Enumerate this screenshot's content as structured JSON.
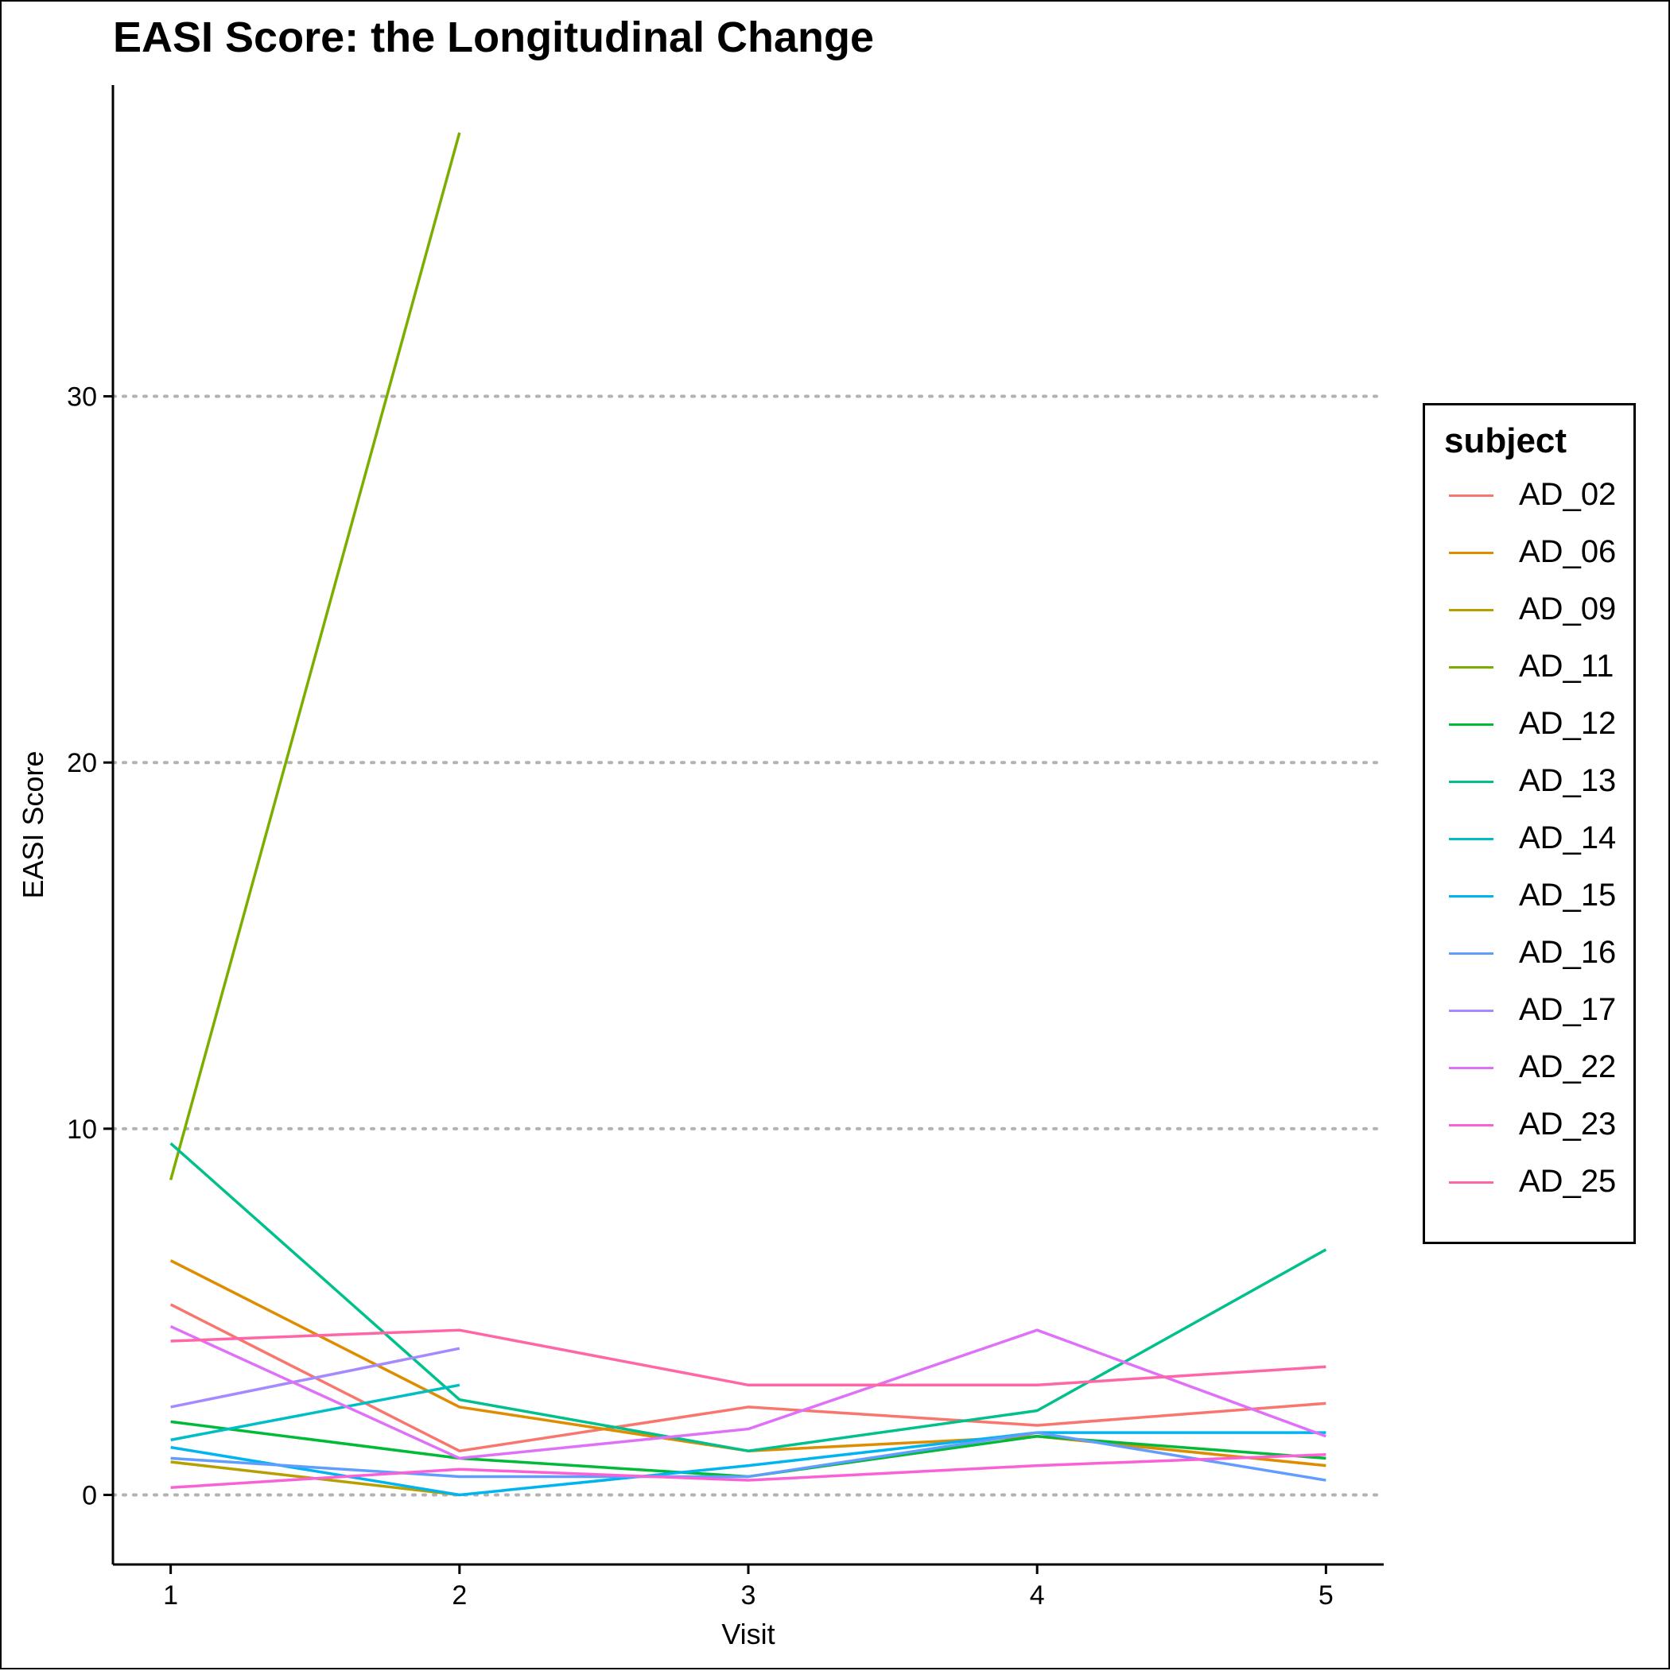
{
  "chart_data": {
    "type": "line",
    "title": "EASI Score: the Longitudinal Change",
    "xlabel": "Visit",
    "ylabel": "EASI Score",
    "x": [
      1,
      2,
      3,
      4,
      5
    ],
    "x_ticks": [
      "1",
      "2",
      "3",
      "4",
      "5"
    ],
    "y_ticks": [
      0,
      10,
      20,
      30
    ],
    "ylim": [
      -1.9,
      38.5
    ],
    "xlim": [
      0.8,
      5.2
    ],
    "grid": "horizontal dotted",
    "legend_title": "subject",
    "legend_position": "right",
    "series": [
      {
        "name": "AD_02",
        "color": "#F8766D",
        "values": [
          5.2,
          1.2,
          2.4,
          1.9,
          2.5
        ]
      },
      {
        "name": "AD_06",
        "color": "#DE8C00",
        "values": [
          6.4,
          2.4,
          1.2,
          1.6,
          0.8
        ]
      },
      {
        "name": "AD_09",
        "color": "#B79F00",
        "values": [
          0.9,
          0.0,
          null,
          null,
          null
        ]
      },
      {
        "name": "AD_11",
        "color": "#7CAE00",
        "values": [
          8.6,
          37.2,
          null,
          null,
          null
        ]
      },
      {
        "name": "AD_12",
        "color": "#00BA38",
        "values": [
          2.0,
          1.0,
          0.5,
          1.6,
          1.0
        ]
      },
      {
        "name": "AD_13",
        "color": "#00C08B",
        "values": [
          9.6,
          2.6,
          1.2,
          2.3,
          6.7
        ]
      },
      {
        "name": "AD_14",
        "color": "#00BFC4",
        "values": [
          1.5,
          3.0,
          null,
          null,
          null
        ]
      },
      {
        "name": "AD_15",
        "color": "#00B4F0",
        "values": [
          1.3,
          0.0,
          0.8,
          1.7,
          1.7
        ]
      },
      {
        "name": "AD_16",
        "color": "#619CFF",
        "values": [
          1.0,
          0.5,
          0.5,
          1.7,
          0.4
        ]
      },
      {
        "name": "AD_17",
        "color": "#A58AFF",
        "values": [
          2.4,
          4.0,
          null,
          null,
          null
        ]
      },
      {
        "name": "AD_22",
        "color": "#DF70F8",
        "values": [
          4.6,
          1.0,
          1.8,
          4.5,
          1.6
        ]
      },
      {
        "name": "AD_23",
        "color": "#FB61D7",
        "values": [
          0.2,
          0.7,
          0.4,
          0.8,
          1.1
        ]
      },
      {
        "name": "AD_25",
        "color": "#FF66A8",
        "values": [
          4.2,
          4.5,
          3.0,
          3.0,
          3.5
        ]
      }
    ]
  }
}
